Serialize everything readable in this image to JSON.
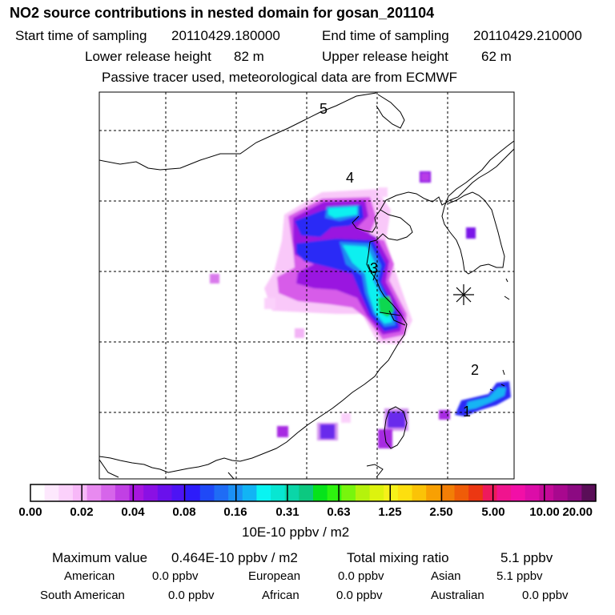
{
  "header": {
    "title": "NO2 source contributions in nested domain for gosan_201104",
    "start_label": "Start time of sampling",
    "start_value": "20110429.180000",
    "end_label": "End time of sampling",
    "end_value": "20110429.210000",
    "lower_label": "Lower release height",
    "lower_value": "82 m",
    "upper_label": "Upper release height",
    "upper_value": "62 m",
    "note": "Passive tracer used, meteorological data are from ECMWF"
  },
  "map": {
    "region_labels": [
      "1",
      "2",
      "3",
      "4",
      "5"
    ],
    "receptor_marker": "asterisk-icon"
  },
  "colorbar": {
    "tick_labels": [
      "0.00",
      "0.02",
      "0.04",
      "0.08",
      "0.16",
      "0.31",
      "0.63",
      "1.25",
      "2.50",
      "5.00",
      "10.00",
      "20.00"
    ],
    "unit": "10E-10 ppbv / m2",
    "colors": [
      "#ffffff",
      "#fde8fd",
      "#fbd1fb",
      "#f7b8f8",
      "#e88af0",
      "#d665ea",
      "#c140e4",
      "#a716de",
      "#8a10e4",
      "#6a10ec",
      "#4d14f4",
      "#2d1cfa",
      "#1f49f7",
      "#1f6cf5",
      "#1b90f4",
      "#12b4f4",
      "#09f4f2",
      "#08e6d2",
      "#0ad6a8",
      "#0cc880",
      "#06e31b",
      "#2ef30f",
      "#78f50d",
      "#b5f20c",
      "#ddf30e",
      "#f6f11a",
      "#fddf0f",
      "#fbc307",
      "#f8a003",
      "#f27e06",
      "#ef5c08",
      "#ec3712",
      "#ee1a5c",
      "#f0148e",
      "#f20fa7",
      "#dc0da8",
      "#c40a98",
      "#a8088e",
      "#8c0a82",
      "#5a0e58"
    ]
  },
  "stats": {
    "max_label": "Maximum value",
    "max_value": "0.464E-10 ppbv / m2",
    "total_label": "Total mixing ratio",
    "total_value": "5.1 ppbv",
    "regions": [
      {
        "name": "American",
        "value": "0.0 ppbv"
      },
      {
        "name": "European",
        "value": "0.0 ppbv"
      },
      {
        "name": "Asian",
        "value": "5.1 ppbv"
      },
      {
        "name": "South American",
        "value": "0.0 ppbv"
      },
      {
        "name": "African",
        "value": "0.0 ppbv"
      },
      {
        "name": "Australian",
        "value": "0.0 ppbv"
      }
    ]
  }
}
